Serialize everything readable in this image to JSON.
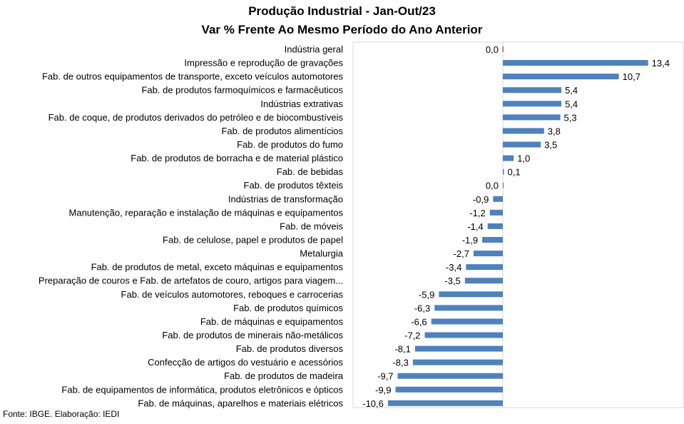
{
  "chart_data": {
    "type": "bar",
    "orientation": "horizontal",
    "title": "Produção  Industrial  - Jan-Out/23",
    "subtitle": "Var % Frente Ao Mesmo Período do Ano Anterior",
    "colors": {
      "bar": "#4f81bd",
      "highlight": "#c0504d",
      "gridline": "#d9d9d9"
    },
    "categories": [
      "Indústria geral",
      "Impressão e reprodução de gravações",
      "Fab. de outros equipamentos de transporte, exceto veículos automotores",
      "Fab. de produtos farmoquímicos e farmacêuticos",
      "Indústrias extrativas",
      "Fab. de coque, de produtos derivados do petróleo e de biocombustíveis",
      "Fab. de produtos alimentícios",
      "Fab. de produtos do fumo",
      "Fab. de produtos de borracha e de material plástico",
      "Fab. de bebidas",
      "Fab. de produtos têxteis",
      "Indústrias de transformação",
      "Manutenção, reparação e instalação de máquinas e equipamentos",
      "Fab. de móveis",
      "Fab. de celulose, papel e produtos de papel",
      "Metalurgia",
      "Fab. de produtos de metal, exceto máquinas e equipamentos",
      "Preparação de couros e Fab. de artefatos de couro, artigos para viagem...",
      "Fab. de veículos automotores, reboques e carrocerias",
      "Fab. de produtos químicos",
      "Fab. de máquinas e equipamentos",
      "Fab. de produtos de minerais não-metálicos",
      "Fab. de produtos diversos",
      "Confecção de artigos do vestuário e acessórios",
      "Fab. de produtos de madeira",
      "Fab. de equipamentos de informática, produtos eletrônicos e ópticos",
      "Fab. de máquinas, aparelhos e materiais elétricos"
    ],
    "values": [
      0.0,
      13.4,
      10.7,
      5.4,
      5.4,
      5.3,
      3.8,
      3.5,
      1.0,
      0.1,
      0.0,
      -0.9,
      -1.2,
      -1.4,
      -1.9,
      -2.7,
      -3.4,
      -3.5,
      -5.9,
      -6.3,
      -6.6,
      -7.2,
      -8.1,
      -8.3,
      -9.7,
      -9.9,
      -10.6
    ],
    "labels": [
      "0,0",
      "13,4",
      "10,7",
      "5,4",
      "5,4",
      "5,3",
      "3,8",
      "3,5",
      "1,0",
      "0,1",
      "0,0",
      "-0,9",
      "-1,2",
      "-1,4",
      "-1,9",
      "-2,7",
      "-3,4",
      "-3,5",
      "-5,9",
      "-6,3",
      "-6,6",
      "-7,2",
      "-8,1",
      "-8,3",
      "-9,7",
      "-9,9",
      "-10,6"
    ],
    "xlim": [
      -12,
      14.5
    ],
    "grid": false,
    "legend": "none"
  },
  "source": "Fonte: IBGE. Elaboração: IEDI"
}
